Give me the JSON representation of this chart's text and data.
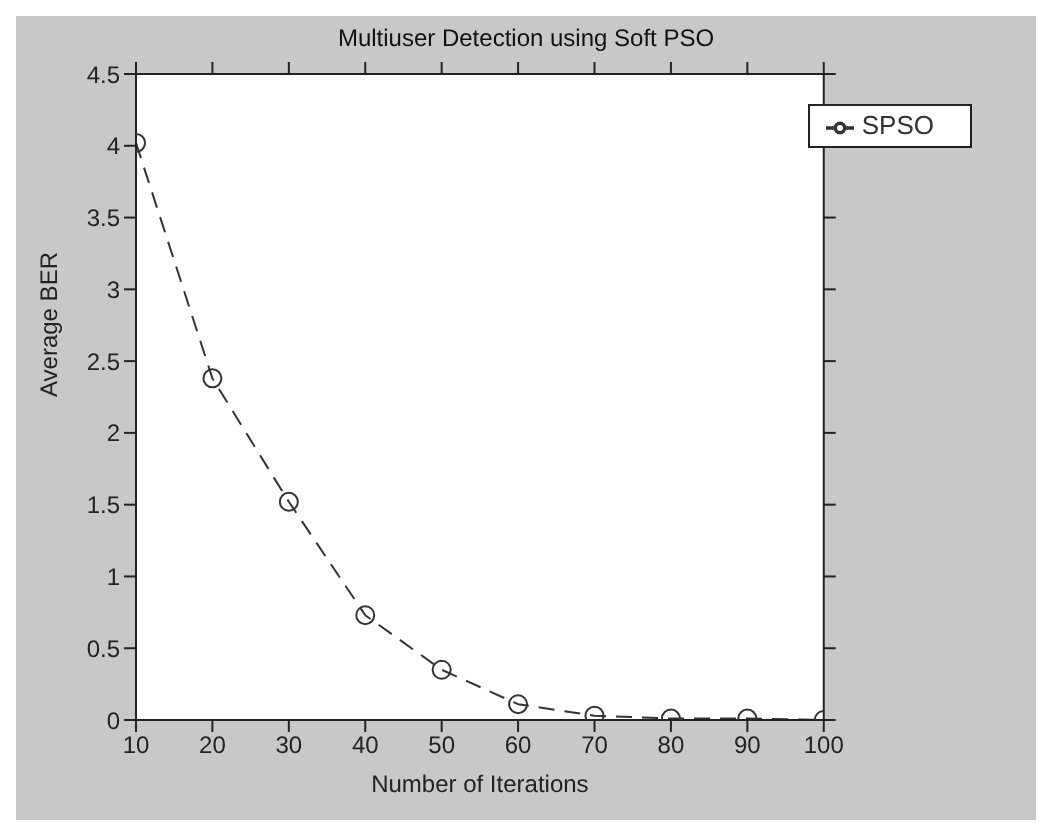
{
  "chart_data": {
    "type": "line",
    "title": "Multiuser Detection using Soft PSO",
    "xlabel": "Number of Iterations",
    "ylabel": "Average  BER",
    "x": [
      10,
      20,
      30,
      40,
      50,
      60,
      70,
      80,
      90,
      100
    ],
    "series": [
      {
        "name": "SPSO",
        "color": "#333333",
        "values": [
          4.02,
          2.38,
          1.52,
          0.73,
          0.35,
          0.11,
          0.03,
          0.01,
          0.01,
          0
        ]
      }
    ],
    "xlim": [
      10,
      100
    ],
    "xticks": [
      10,
      20,
      30,
      40,
      50,
      60,
      70,
      80,
      90,
      100
    ],
    "ylim": [
      0,
      4.5
    ],
    "yticks": [
      0,
      0.5,
      1,
      1.5,
      2,
      2.5,
      3,
      3.5,
      4,
      4.5
    ],
    "grid": false,
    "legend": "top right",
    "marker": "circle",
    "line_style": "dashed"
  }
}
